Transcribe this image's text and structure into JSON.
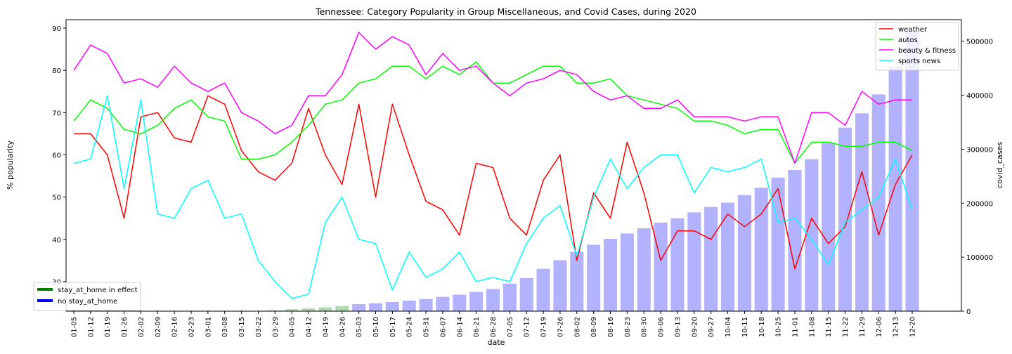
{
  "chart_data": {
    "type": "line",
    "title": "Tennessee: Category Popularity in Group Miscellaneous, and Covid Cases, during 2020",
    "xlabel": "date",
    "ylabel": "% popularity",
    "y2label": "covid_cases",
    "ylim": [
      23,
      92
    ],
    "y2lim": [
      0,
      540000
    ],
    "yticks": [
      30,
      40,
      50,
      60,
      70,
      80,
      90
    ],
    "y2ticks": [
      0,
      100000,
      200000,
      300000,
      400000,
      500000
    ],
    "categories": [
      "01-05",
      "01-12",
      "01-19",
      "01-26",
      "02-02",
      "02-09",
      "02-16",
      "02-23",
      "03-01",
      "03-08",
      "03-15",
      "03-22",
      "03-29",
      "04-05",
      "04-12",
      "04-19",
      "04-26",
      "05-03",
      "05-10",
      "05-17",
      "05-24",
      "05-31",
      "06-07",
      "06-14",
      "06-21",
      "06-28",
      "07-05",
      "07-12",
      "07-19",
      "07-26",
      "08-02",
      "08-09",
      "08-16",
      "08-23",
      "08-30",
      "09-06",
      "09-13",
      "09-20",
      "09-27",
      "10-04",
      "10-11",
      "10-18",
      "10-25",
      "11-01",
      "11-08",
      "11-15",
      "11-22",
      "11-29",
      "12-06",
      "12-13",
      "12-20"
    ],
    "series": [
      {
        "name": "weather",
        "color": "#ff0000",
        "values": [
          65,
          65,
          60,
          45,
          69,
          70,
          64,
          63,
          74,
          72,
          61,
          56,
          54,
          58,
          71,
          60,
          53,
          72,
          50,
          72,
          60,
          49,
          47,
          41,
          58,
          57,
          45,
          41,
          54,
          60,
          35,
          51,
          45,
          63,
          51,
          35,
          42,
          42,
          40,
          46,
          43,
          46,
          52,
          33,
          45,
          39,
          43,
          56,
          41,
          53,
          60
        ]
      },
      {
        "name": "autos",
        "color": "#00ff00",
        "values": [
          68,
          73,
          71,
          66,
          65,
          67,
          71,
          73,
          69,
          68,
          59,
          59,
          60,
          63,
          67,
          72,
          73,
          77,
          78,
          81,
          81,
          78,
          81,
          79,
          82,
          77,
          77,
          79,
          81,
          81,
          77,
          77,
          78,
          74,
          73,
          72,
          71,
          68,
          68,
          67,
          65,
          66,
          66,
          58,
          63,
          63,
          62,
          62,
          63,
          63,
          61
        ]
      },
      {
        "name": "beauty & fitness",
        "color": "#ff00ff",
        "values": [
          80,
          86,
          84,
          77,
          78,
          76,
          81,
          77,
          75,
          77,
          70,
          68,
          65,
          67,
          74,
          74,
          79,
          89,
          85,
          88,
          86,
          79,
          84,
          80,
          81,
          77,
          74,
          77,
          78,
          80,
          79,
          75,
          73,
          74,
          71,
          71,
          73,
          69,
          69,
          69,
          68,
          69,
          69,
          58,
          70,
          70,
          67,
          75,
          72,
          73,
          73
        ]
      },
      {
        "name": "sports news",
        "color": "#00ffff",
        "values": [
          58,
          59,
          74,
          52,
          73,
          46,
          45,
          52,
          54,
          45,
          46,
          35,
          30,
          26,
          27,
          44,
          50,
          40,
          39,
          28,
          37,
          31,
          33,
          37,
          30,
          31,
          30,
          39,
          45,
          48,
          36,
          50,
          59,
          52,
          57,
          60,
          60,
          51,
          57,
          56,
          57,
          59,
          44,
          45,
          40,
          34,
          44,
          47,
          50,
          59,
          47
        ]
      }
    ],
    "bars": {
      "name": "covid_cases",
      "values": [
        0,
        0,
        0,
        0,
        0,
        0,
        0,
        0,
        0,
        0,
        0,
        500,
        1500,
        3500,
        5000,
        7000,
        9500,
        13000,
        14500,
        17000,
        19500,
        22500,
        26500,
        30500,
        35500,
        41000,
        51000,
        61500,
        78500,
        94500,
        110000,
        123000,
        134000,
        144000,
        153500,
        164000,
        172000,
        183000,
        193000,
        201000,
        215000,
        228500,
        247500,
        261500,
        281500,
        311500,
        340000,
        366500,
        401500,
        453000,
        520000
      ],
      "colors": [
        "#0000ff",
        "#0000ff",
        "#0000ff",
        "#0000ff",
        "#0000ff",
        "#0000ff",
        "#0000ff",
        "#0000ff",
        "#0000ff",
        "#0000ff",
        "#0000ff",
        "#008000",
        "#008000",
        "#008000",
        "#008000",
        "#008000",
        "#008000",
        "#0000ff",
        "#0000ff",
        "#0000ff",
        "#0000ff",
        "#0000ff",
        "#0000ff",
        "#0000ff",
        "#0000ff",
        "#0000ff",
        "#0000ff",
        "#0000ff",
        "#0000ff",
        "#0000ff",
        "#0000ff",
        "#0000ff",
        "#0000ff",
        "#0000ff",
        "#0000ff",
        "#0000ff",
        "#0000ff",
        "#0000ff",
        "#0000ff",
        "#0000ff",
        "#0000ff",
        "#0000ff",
        "#0000ff",
        "#0000ff",
        "#0000ff",
        "#0000ff",
        "#0000ff",
        "#0000ff",
        "#0000ff",
        "#0000ff",
        "#0000ff"
      ]
    },
    "legend_lines": {
      "placement": "upper-right",
      "entries": [
        {
          "label": "weather",
          "color": "#ff0000"
        },
        {
          "label": "autos",
          "color": "#00ff00"
        },
        {
          "label": "beauty & fitness",
          "color": "#ff00ff"
        },
        {
          "label": "sports news",
          "color": "#00ffff"
        }
      ]
    },
    "legend_bars": {
      "placement": "lower-left",
      "entries": [
        {
          "label": "stay_at_home in effect",
          "color": "#008000"
        },
        {
          "label": "no stay_at_home",
          "color": "#0000ff"
        }
      ]
    }
  }
}
